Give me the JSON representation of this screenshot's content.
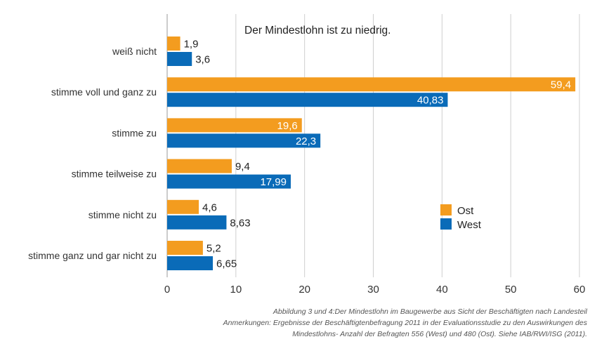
{
  "chart_data": {
    "type": "bar",
    "orientation": "horizontal",
    "title": "Der Mindestlohn ist zu niedrig.",
    "categories": [
      "weiß nicht",
      "stimme voll und ganz zu",
      "stimme zu",
      "stimme teilweise zu",
      "stimme nicht zu",
      "stimme ganz und gar nicht zu"
    ],
    "series": [
      {
        "name": "Ost",
        "color": "#f39c1f",
        "values": [
          1.9,
          59.4,
          19.6,
          9.4,
          4.6,
          5.2
        ],
        "labels": [
          "1,9",
          "59,4",
          "19,6",
          "9,4",
          "4,6",
          "5,2"
        ]
      },
      {
        "name": "West",
        "color": "#0a6bb8",
        "values": [
          3.6,
          40.83,
          22.3,
          17.99,
          8.63,
          6.65
        ],
        "labels": [
          "3,6",
          "40,83",
          "22,3",
          "17,99",
          "8,63",
          "6,65"
        ]
      }
    ],
    "xlim": [
      0,
      60
    ],
    "xticks": [
      0,
      10,
      20,
      30,
      40,
      50,
      60
    ],
    "grid": true,
    "legend_position": "right"
  },
  "caption": {
    "line1": "Abbildung 3 und 4:Der Mindestlohn im Baugewerbe aus Sicht der Beschäftigten nach Landesteil",
    "line2": "Anmerkungen: Ergebnisse der Beschäftigtenbefragung 2011 in der Evaluationsstudie zu den Auswirkungen des",
    "line3": "Mindestlohns- Anzahl der Befragten 556 (West) und 480 (Ost). Siehe IAB/RWI/ISG (2011)."
  }
}
